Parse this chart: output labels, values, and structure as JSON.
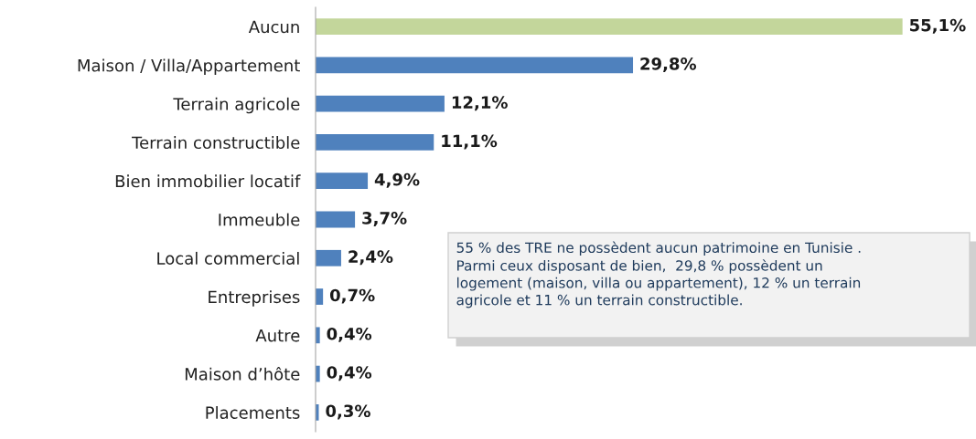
{
  "chart_data": {
    "type": "bar",
    "orientation": "horizontal",
    "categories": [
      "Aucun",
      "Maison / Villa/Appartement",
      "Terrain agricole",
      "Terrain constructible",
      "Bien immobilier locatif",
      "Immeuble",
      "Local commercial",
      "Entreprises",
      "Autre",
      "Maison d’hôte",
      "Placements"
    ],
    "values": [
      55.1,
      29.8,
      12.1,
      11.1,
      4.9,
      3.7,
      2.4,
      0.7,
      0.4,
      0.4,
      0.3
    ],
    "colors": [
      "#c3d69b",
      "#4f81bd",
      "#4f81bd",
      "#4f81bd",
      "#4f81bd",
      "#4f81bd",
      "#4f81bd",
      "#4f81bd",
      "#4f81bd",
      "#4f81bd",
      "#4f81bd"
    ],
    "value_labels": [
      "55,1%",
      "29,8%",
      "12,1%",
      "11,1%",
      "4,9%",
      "3,7%",
      "2,4%",
      "0,7%",
      "0,4%",
      "0,4%",
      "0,3%"
    ],
    "xlim": [
      0,
      62
    ],
    "tick_labels": "y",
    "grid": false,
    "annotations": [
      "55 % des TRE ne possèdent aucun patrimoine en Tunisie .\nParmi ceux disposant de bien,  29,8 % possèdent un\nlogement (maison, villa ou appartement), 12 % un terrain\nagricole et 11 % un terrain constructible."
    ]
  }
}
